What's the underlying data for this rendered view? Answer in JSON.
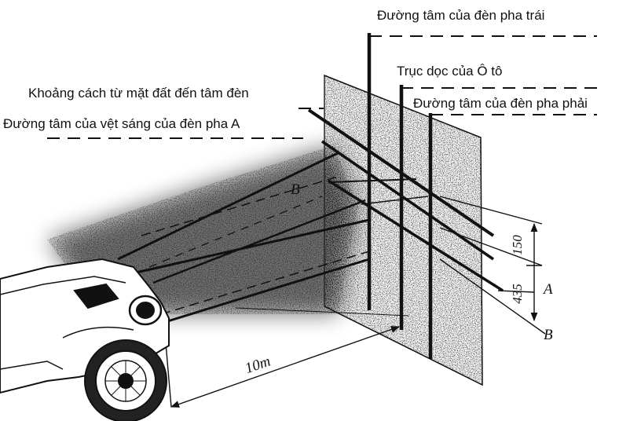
{
  "labels": {
    "left_headlight_center": "Đường tâm của đèn pha trái",
    "car_longitudinal_axis": "Trục dọc của Ô tô",
    "right_headlight_center": "Đường tâm của đèn pha phải",
    "ground_to_lamp_distance": "Khoảng cách từ mặt đất đến tâm đèn",
    "beam_spot_center_a": "Đường tâm của vệt sáng của đèn pha A"
  },
  "dimensions": {
    "distance": "10m",
    "dim_upper": "150",
    "dim_lower": "435"
  },
  "markers": {
    "a": "A",
    "b_right": "B",
    "b_left": "B"
  },
  "colors": {
    "ink": "#111111",
    "background": "#ffffff"
  }
}
